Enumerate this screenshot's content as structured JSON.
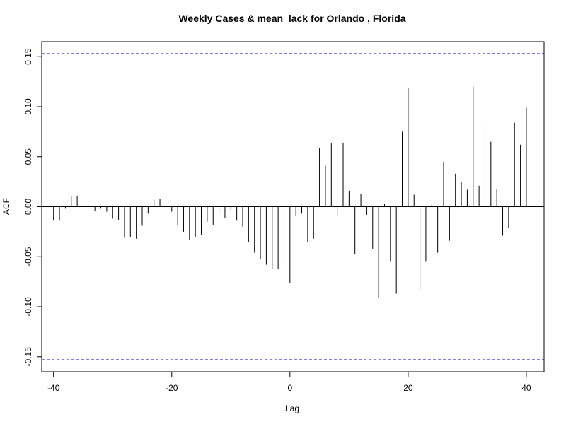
{
  "chart_data": {
    "type": "bar",
    "title": "Weekly Cases & mean_lack for Orlando , Florida",
    "xlabel": "Lag",
    "ylabel": "ACF",
    "xlim": [
      -42,
      43
    ],
    "ylim": [
      -0.165,
      0.165
    ],
    "x_ticks": [
      -40,
      -20,
      0,
      20,
      40
    ],
    "y_ticks": [
      -0.15,
      -0.1,
      -0.05,
      0.0,
      0.05,
      0.1,
      0.15
    ],
    "y_tick_labels": [
      "-0.15",
      "-0.10",
      "-0.05",
      "0.00",
      "0.05",
      "0.10",
      "0.15"
    ],
    "confidence_bound": 0.153,
    "confidence_color": "#0000cc",
    "bar_color": "#000000",
    "grid": false,
    "lags": [
      -40,
      -39,
      -38,
      -37,
      -36,
      -35,
      -34,
      -33,
      -32,
      -31,
      -30,
      -29,
      -28,
      -27,
      -26,
      -25,
      -24,
      -23,
      -22,
      -21,
      -20,
      -19,
      -18,
      -17,
      -16,
      -15,
      -14,
      -13,
      -12,
      -11,
      -10,
      -9,
      -8,
      -7,
      -6,
      -5,
      -4,
      -3,
      -2,
      -1,
      0,
      1,
      2,
      3,
      4,
      5,
      6,
      7,
      8,
      9,
      10,
      11,
      12,
      13,
      14,
      15,
      16,
      17,
      18,
      19,
      20,
      21,
      22,
      23,
      24,
      25,
      26,
      27,
      28,
      29,
      30,
      31,
      32,
      33,
      34,
      35,
      36,
      37,
      38,
      39,
      40
    ],
    "values": [
      -0.014,
      -0.014,
      -0.002,
      0.01,
      0.011,
      0.006,
      0.001,
      -0.004,
      -0.002,
      -0.005,
      -0.012,
      -0.013,
      -0.031,
      -0.03,
      -0.032,
      -0.019,
      -0.007,
      0.007,
      0.008,
      0.001,
      -0.005,
      -0.018,
      -0.025,
      -0.033,
      -0.03,
      -0.028,
      -0.015,
      -0.018,
      -0.004,
      -0.011,
      -0.003,
      -0.014,
      -0.02,
      -0.035,
      -0.046,
      -0.052,
      -0.058,
      -0.062,
      -0.062,
      -0.058,
      -0.076,
      -0.009,
      -0.007,
      -0.035,
      -0.032,
      0.059,
      0.041,
      0.064,
      -0.009,
      0.064,
      0.016,
      -0.047,
      0.013,
      -0.008,
      -0.042,
      -0.091,
      0.003,
      -0.055,
      -0.087,
      0.075,
      0.119,
      0.012,
      -0.083,
      -0.055,
      0.002,
      -0.046,
      0.045,
      -0.034,
      0.033,
      0.025,
      0.017,
      0.12,
      0.021,
      0.082,
      0.065,
      0.018,
      -0.029,
      -0.021,
      0.084,
      0.062,
      0.099
    ]
  }
}
